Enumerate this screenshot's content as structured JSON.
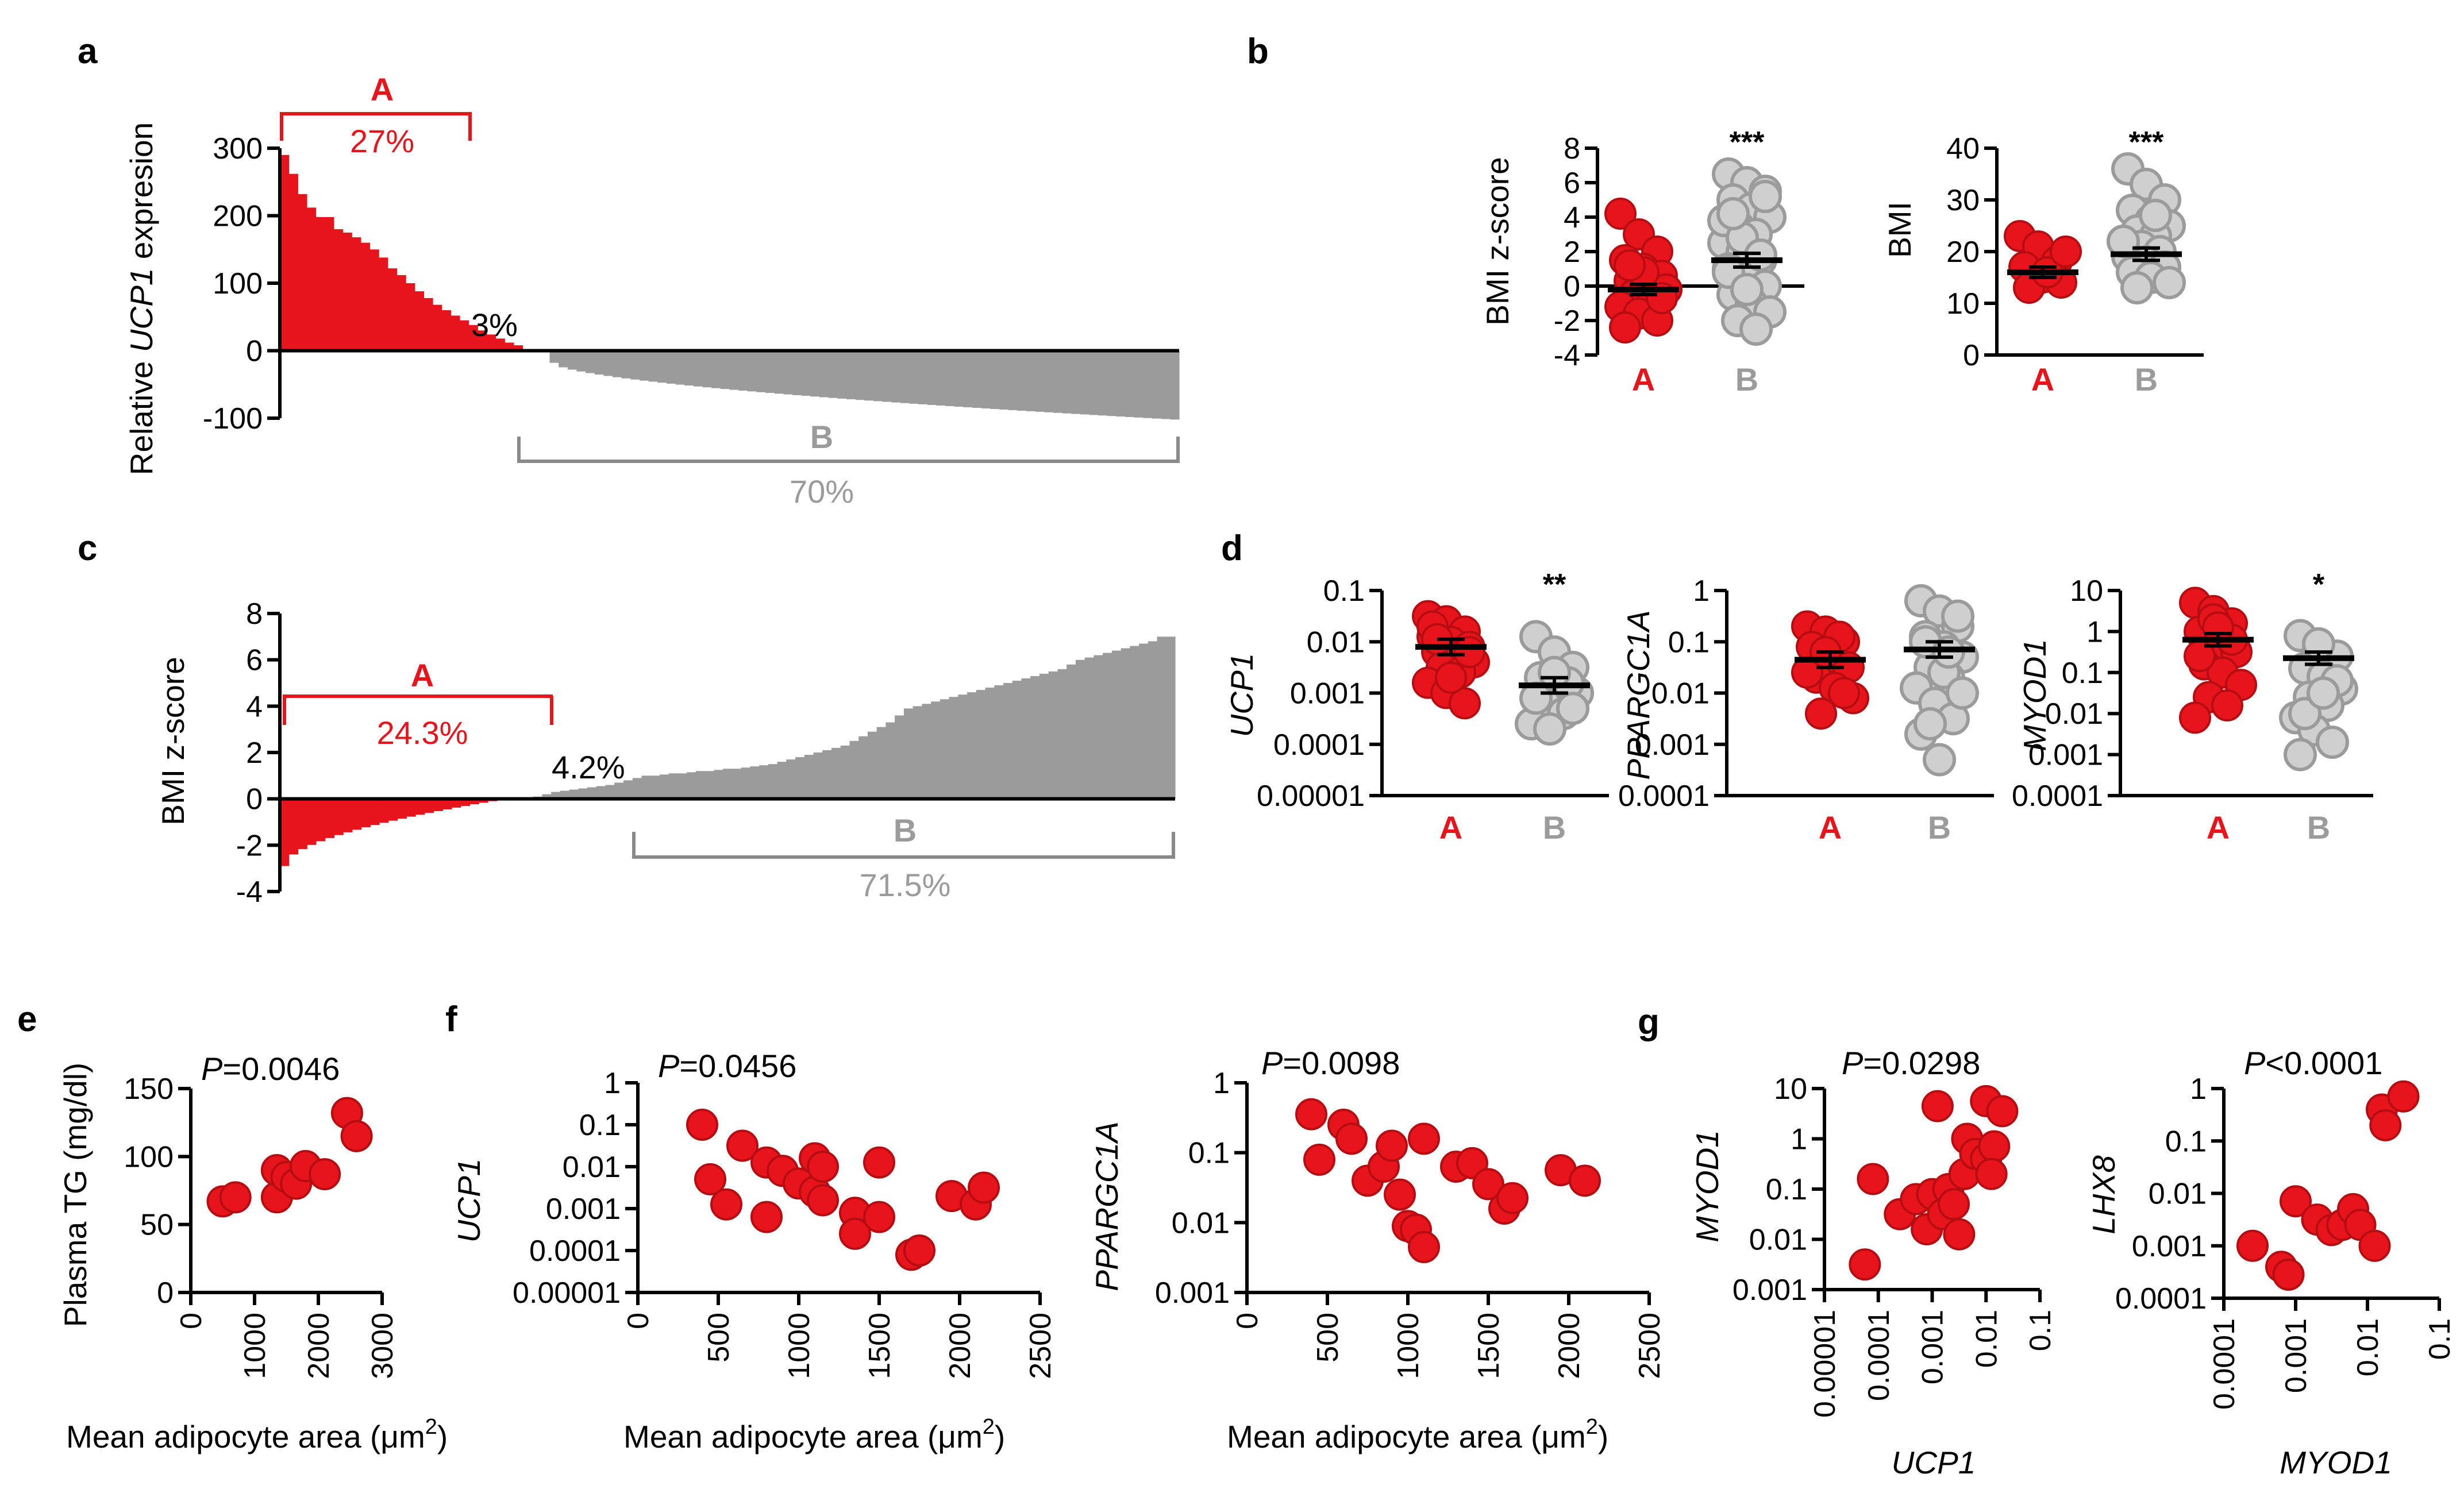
{
  "colors": {
    "red": "#e8141b",
    "red_dark": "#b50d12",
    "gray": "#9b9b9b",
    "gray_light": "#cfcfcf",
    "black": "#000000"
  },
  "panels": {
    "a": {
      "label": "a",
      "ylabel_prefix": "Relative ",
      "ylabel_gene": "UCP1",
      "ylabel_suffix": " expresion",
      "ylim": [
        -100,
        300
      ],
      "yticks": [
        "300",
        "200",
        "100",
        "0",
        "-100"
      ],
      "groupA": {
        "letter": "A",
        "pct": "27%"
      },
      "middle_pct": "3%",
      "groupB": {
        "letter": "B",
        "pct": "70%"
      },
      "bars_A": [
        290,
        262,
        232,
        212,
        198,
        198,
        180,
        175,
        168,
        160,
        150,
        138,
        122,
        112,
        100,
        88,
        78,
        68,
        60,
        52,
        45,
        38,
        30,
        24,
        18,
        12,
        8
      ],
      "n_mid": 3,
      "bars_B_start": -18,
      "bars_B_end": -102,
      "n_B": 70
    },
    "b": {
      "label": "b",
      "left": {
        "ylabel": "BMI z-score",
        "yticks": [
          "8",
          "6",
          "4",
          "2",
          "0",
          "-2",
          "-4"
        ],
        "ylim": [
          -4,
          8
        ],
        "groups": [
          "A",
          "B"
        ],
        "mean_A": -0.2,
        "mean_B": 1.5,
        "sem_A": 0.3,
        "sem_B": 0.4,
        "sig": "***",
        "points_A": [
          4.2,
          3.0,
          2.0,
          1.5,
          1.0,
          0.6,
          0.3,
          0.0,
          -0.2,
          -0.5,
          -0.9,
          -1.2,
          -1.6,
          -2.0,
          -2.4,
          0.8,
          -0.7,
          1.2
        ],
        "points_B": [
          6.5,
          6.0,
          5.5,
          5.0,
          4.5,
          4.0,
          3.5,
          3.0,
          2.5,
          2.0,
          1.5,
          1.0,
          0.5,
          0.0,
          -0.5,
          -1.0,
          -1.5,
          -2.0,
          -2.5,
          3.8,
          2.8,
          1.8,
          0.8,
          -0.2,
          5.2,
          4.2
        ]
      },
      "right": {
        "ylabel": "BMI",
        "yticks": [
          "40",
          "30",
          "20",
          "10",
          "0"
        ],
        "ylim": [
          0,
          40
        ],
        "groups": [
          "A",
          "B"
        ],
        "mean_A": 16,
        "mean_B": 19.5,
        "sem_A": 1.0,
        "sem_B": 1.2,
        "sig": "***",
        "points_A": [
          23,
          21,
          18,
          17,
          15,
          14,
          13,
          16,
          20
        ],
        "points_B": [
          36,
          33,
          30,
          28,
          26,
          25,
          24,
          23,
          22,
          21,
          20,
          19,
          18,
          17,
          16,
          15,
          14,
          13,
          27,
          22
        ]
      }
    },
    "c": {
      "label": "c",
      "ylabel": "BMI z-score",
      "ylim": [
        -4,
        8
      ],
      "yticks": [
        "8",
        "6",
        "4",
        "2",
        "0",
        "-2",
        "-4"
      ],
      "groupA": {
        "letter": "A",
        "pct": "24.3%"
      },
      "middle_pct": "4.2%",
      "groupB": {
        "letter": "B",
        "pct": "71.5%"
      },
      "bars_A_start": -2.9,
      "bars_A_end": -0.1,
      "n_A": 24,
      "n_mid": 4,
      "bars_B": [
        0.1,
        0.2,
        0.3,
        0.35,
        0.4,
        0.45,
        0.5,
        0.55,
        0.6,
        0.7,
        0.8,
        0.9,
        1.0,
        1.0,
        1.05,
        1.1,
        1.1,
        1.15,
        1.2,
        1.2,
        1.25,
        1.3,
        1.3,
        1.35,
        1.4,
        1.45,
        1.5,
        1.6,
        1.7,
        1.8,
        1.9,
        2.0,
        2.1,
        2.2,
        2.3,
        2.5,
        2.7,
        2.9,
        3.1,
        3.3,
        3.6,
        3.9,
        4.0,
        4.1,
        4.2,
        4.3,
        4.4,
        4.5,
        4.6,
        4.7,
        4.8,
        4.9,
        5.0,
        5.1,
        5.2,
        5.3,
        5.4,
        5.5,
        5.6,
        5.8,
        6.0,
        6.1,
        6.2,
        6.3,
        6.4,
        6.5,
        6.6,
        6.7,
        6.8,
        7.0,
        7.0
      ]
    },
    "d": {
      "label": "d",
      "subplots": [
        {
          "gene": "UCP1",
          "yticks": [
            "0.1",
            "0.01",
            "0.001",
            "0.0001",
            "0.00001"
          ],
          "ylim_log": [
            -5,
            -1
          ],
          "sig": "**",
          "mean_A": -2.1,
          "mean_B": -2.85,
          "groups": [
            "A",
            "B"
          ],
          "points_A": [
            -1.5,
            -1.6,
            -1.8,
            -1.9,
            -2.0,
            -2.1,
            -2.2,
            -2.3,
            -2.4,
            -2.5,
            -2.6,
            -2.8,
            -3.0,
            -3.2,
            -1.7,
            -2.7,
            -2.2,
            -1.95
          ],
          "points_B": [
            -1.9,
            -2.2,
            -2.5,
            -2.7,
            -2.9,
            -3.0,
            -3.2,
            -3.4,
            -3.6,
            -3.7,
            -2.8,
            -3.1,
            -2.6,
            -3.3
          ]
        },
        {
          "gene": "PPARGC1A",
          "yticks": [
            "1",
            "0.1",
            "0.01",
            "0.001",
            "0.0001"
          ],
          "ylim_log": [
            -4,
            0
          ],
          "sig": "",
          "mean_A": -1.35,
          "mean_B": -1.15,
          "groups": [
            "A",
            "B"
          ],
          "points_A": [
            -0.7,
            -0.8,
            -1.0,
            -1.1,
            -1.3,
            -1.5,
            -1.7,
            -1.9,
            -2.1,
            -2.4,
            -0.9,
            -1.6,
            -1.2,
            -2.0
          ],
          "points_B": [
            -0.2,
            -0.4,
            -0.7,
            -0.9,
            -1.1,
            -1.3,
            -1.5,
            -1.7,
            -1.9,
            -2.2,
            -2.5,
            -2.8,
            -3.3,
            -0.5,
            -1.0,
            -1.6,
            -2.0,
            -2.6,
            -1.2
          ]
        },
        {
          "gene": "MYOD1",
          "yticks": [
            "10",
            "1",
            "0.1",
            "0.01",
            "0.001",
            "0.0001"
          ],
          "ylim_log": [
            -4,
            1
          ],
          "sig": "*",
          "mean_A": -0.2,
          "mean_B": -0.65,
          "groups": [
            "A",
            "B"
          ],
          "points_A": [
            0.7,
            0.5,
            0.2,
            0.0,
            -0.3,
            -0.5,
            -0.8,
            -1.0,
            -1.3,
            -1.6,
            -1.8,
            -2.1,
            0.3,
            -0.2,
            -0.6,
            0.1
          ],
          "points_B": [
            -0.1,
            -0.4,
            -0.6,
            -0.9,
            -1.1,
            -1.4,
            -1.6,
            -1.8,
            -2.1,
            -2.4,
            -2.7,
            -3.0,
            -0.3,
            -1.2,
            -2.0,
            -1.5
          ]
        }
      ]
    },
    "e": {
      "label": "e",
      "pvalue_label": "P",
      "pvalue": "=0.0046",
      "ylabel": "Plasma TG (mg/dl)",
      "xlabel_main": "Mean adipocyte area (",
      "xlabel_unit": "μm",
      "xlabel_sup": "2",
      "xlabel_end": ")",
      "yticks": [
        "150",
        "100",
        "50",
        "0"
      ],
      "xticks": [
        "0",
        "1000",
        "2000",
        "3000"
      ],
      "xlim": [
        0,
        3000
      ],
      "ylim": [
        0,
        150
      ],
      "points": [
        [
          500,
          67
        ],
        [
          700,
          70
        ],
        [
          1350,
          70
        ],
        [
          1350,
          90
        ],
        [
          1500,
          85
        ],
        [
          1650,
          80
        ],
        [
          1800,
          93
        ],
        [
          2100,
          87
        ],
        [
          2450,
          132
        ],
        [
          2600,
          115
        ]
      ]
    },
    "f": {
      "label": "f",
      "left": {
        "gene": "UCP1",
        "pvalue_label": "P",
        "pvalue": "=0.0456",
        "yticks": [
          "1",
          "0.1",
          "0.01",
          "0.001",
          "0.0001",
          "0.00001"
        ],
        "ylim_log": [
          -5,
          0
        ],
        "xticks": [
          "0",
          "500",
          "1000",
          "1500",
          "2000",
          "2500"
        ],
        "xlim": [
          0,
          2500
        ],
        "points": [
          [
            400,
            -1.0
          ],
          [
            450,
            -2.3
          ],
          [
            550,
            -2.9
          ],
          [
            650,
            -1.5
          ],
          [
            800,
            -3.2
          ],
          [
            800,
            -1.9
          ],
          [
            900,
            -2.1
          ],
          [
            1000,
            -2.4
          ],
          [
            1100,
            -1.8
          ],
          [
            1100,
            -2.6
          ],
          [
            1150,
            -2.0
          ],
          [
            1150,
            -2.8
          ],
          [
            1350,
            -3.1
          ],
          [
            1350,
            -3.6
          ],
          [
            1500,
            -1.9
          ],
          [
            1500,
            -3.2
          ],
          [
            1700,
            -4.1
          ],
          [
            1750,
            -4.0
          ],
          [
            1950,
            -2.7
          ],
          [
            2100,
            -2.9
          ],
          [
            2150,
            -2.5
          ]
        ]
      },
      "right": {
        "gene": "PPARGC1A",
        "pvalue_label": "P",
        "pvalue": "=0.0098",
        "yticks": [
          "1",
          "0.1",
          "0.01",
          "0.001"
        ],
        "ylim_log": [
          -3,
          0
        ],
        "xticks": [
          "0",
          "500",
          "1000",
          "1500",
          "2000",
          "2500"
        ],
        "xlim": [
          0,
          2500
        ],
        "points": [
          [
            400,
            -0.45
          ],
          [
            450,
            -1.1
          ],
          [
            600,
            -0.6
          ],
          [
            650,
            -0.8
          ],
          [
            750,
            -1.4
          ],
          [
            850,
            -1.2
          ],
          [
            900,
            -0.9
          ],
          [
            950,
            -1.6
          ],
          [
            1000,
            -2.05
          ],
          [
            1050,
            -2.1
          ],
          [
            1100,
            -2.35
          ],
          [
            1100,
            -0.8
          ],
          [
            1300,
            -1.2
          ],
          [
            1400,
            -1.15
          ],
          [
            1500,
            -1.45
          ],
          [
            1600,
            -1.8
          ],
          [
            1650,
            -1.65
          ],
          [
            1950,
            -1.25
          ],
          [
            2100,
            -1.4
          ]
        ]
      },
      "xlabel_main": "Mean adipocyte area (",
      "xlabel_unit": "μm",
      "xlabel_sup": "2",
      "xlabel_end": ")"
    },
    "g": {
      "label": "g",
      "left": {
        "ylabel": "MYOD1",
        "xlabel": "UCP1",
        "pvalue_label": "P",
        "pvalue": "=0.0298",
        "yticks": [
          "10",
          "1",
          "0.1",
          "0.01",
          "0.001"
        ],
        "ylim_log": [
          -3,
          1
        ],
        "xticks": [
          "0.00001",
          "0.0001",
          "0.001",
          "0.01",
          "0.1"
        ],
        "xlim_log": [
          -5,
          -1
        ],
        "points": [
          [
            -4.25,
            -2.5
          ],
          [
            -4.1,
            -0.8
          ],
          [
            -3.6,
            -1.5
          ],
          [
            -3.3,
            -1.2
          ],
          [
            -3.1,
            -1.8
          ],
          [
            -3.0,
            -1.1
          ],
          [
            -2.9,
            0.65
          ],
          [
            -2.8,
            -1.5
          ],
          [
            -2.7,
            -1.0
          ],
          [
            -2.6,
            -1.3
          ],
          [
            -2.5,
            -1.9
          ],
          [
            -2.4,
            -0.7
          ],
          [
            -2.35,
            0.0
          ],
          [
            -2.2,
            -0.3
          ],
          [
            -2.0,
            -0.4
          ],
          [
            -2.0,
            0.75
          ],
          [
            -1.85,
            -0.15
          ],
          [
            -1.7,
            0.55
          ],
          [
            -1.9,
            -0.7
          ]
        ]
      },
      "right": {
        "ylabel": "LHX8",
        "xlabel": "MYOD1",
        "pvalue_label": "P",
        "pvalue": "<0.0001",
        "yticks": [
          "1",
          "0.1",
          "0.01",
          "0.001",
          "0.0001"
        ],
        "ylim_log": [
          -4,
          0
        ],
        "xticks": [
          "0.0001",
          "0.001",
          "0.01",
          "0.1"
        ],
        "xlim_log": [
          -4,
          -1
        ],
        "points": [
          [
            -3.6,
            -3.0
          ],
          [
            -3.2,
            -3.4
          ],
          [
            -3.1,
            -3.55
          ],
          [
            -3.0,
            -2.15
          ],
          [
            -2.7,
            -2.5
          ],
          [
            -2.5,
            -2.7
          ],
          [
            -2.35,
            -2.6
          ],
          [
            -2.2,
            -2.3
          ],
          [
            -2.1,
            -2.6
          ],
          [
            -1.9,
            -3.0
          ],
          [
            -1.8,
            -0.4
          ],
          [
            -1.75,
            -0.7
          ],
          [
            -1.5,
            -0.15
          ]
        ]
      }
    }
  }
}
